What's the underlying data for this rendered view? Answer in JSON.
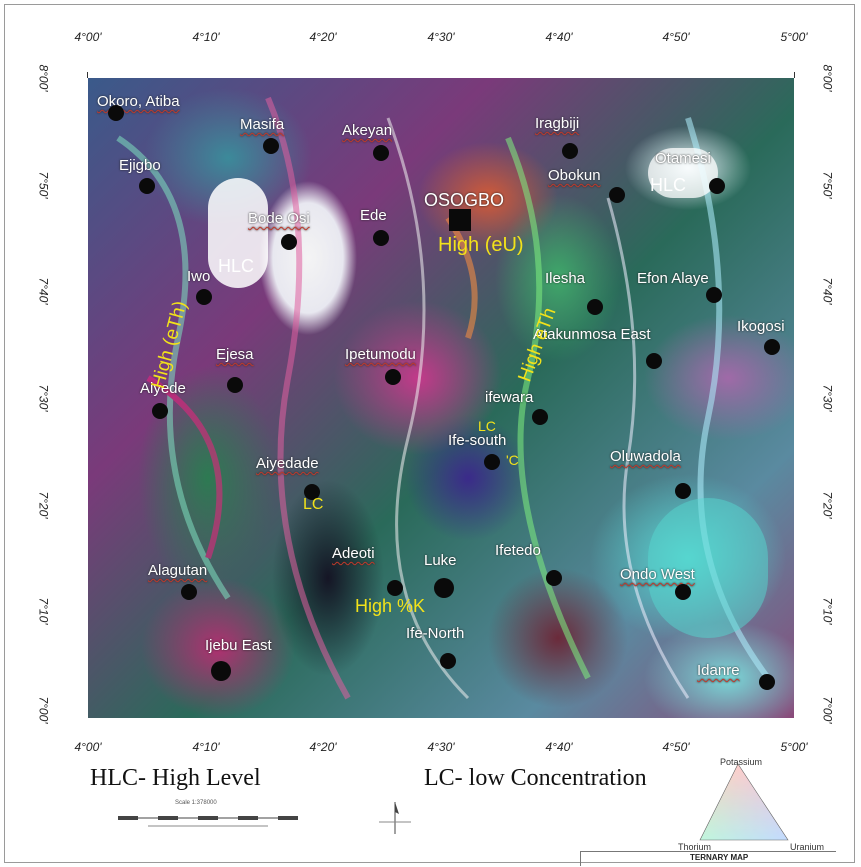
{
  "graticule": {
    "top": [
      "4°00'",
      "4°10'",
      "4°20'",
      "4°30'",
      "4°40'",
      "4°50'",
      "5°00'"
    ],
    "bottom": [
      "4°00'",
      "4°10'",
      "4°20'",
      "4°30'",
      "4°40'",
      "4°50'",
      "5°00'"
    ],
    "left": [
      "8°00'",
      "7°50'",
      "7°40'",
      "7°30'",
      "7°20'",
      "7°10'",
      "7°00'"
    ],
    "right": [
      "8°00'",
      "7°50'",
      "7°40'",
      "7°30'",
      "7°20'",
      "7°10'",
      "7°00'"
    ]
  },
  "towns": [
    {
      "name": "Okoro, Atiba"
    },
    {
      "name": "Masifa"
    },
    {
      "name": "Akeyan"
    },
    {
      "name": "Iragbiji"
    },
    {
      "name": "Ejigbo"
    },
    {
      "name": "Obokun"
    },
    {
      "name": "Otamesi"
    },
    {
      "name": "Bode Osi"
    },
    {
      "name": "Ede"
    },
    {
      "name": "OSOGBO"
    },
    {
      "name": "Iwo"
    },
    {
      "name": "Ilesha"
    },
    {
      "name": "Efon Alaye"
    },
    {
      "name": "Ikogosi"
    },
    {
      "name": "Atakunmosa East"
    },
    {
      "name": "Ejesa"
    },
    {
      "name": "Ipetumodu"
    },
    {
      "name": "Aiyede"
    },
    {
      "name": "ifewara"
    },
    {
      "name": "Ife-south"
    },
    {
      "name": "Aiyedade"
    },
    {
      "name": "Oluwadola"
    },
    {
      "name": "Adeoti"
    },
    {
      "name": "Luke"
    },
    {
      "name": "Ifetedo"
    },
    {
      "name": "Alagutan"
    },
    {
      "name": "Ondo West"
    },
    {
      "name": "Ife-North"
    },
    {
      "name": "Ijebu East"
    },
    {
      "name": "Idanre"
    }
  ],
  "zones": {
    "hlc_west": "HLC",
    "hlc_east": "HLC",
    "high_eu": "High (eU)",
    "high_eth": "High (eTh)",
    "high_th": "High eTh",
    "high_k": "High %K",
    "lc_main": "LC",
    "lc_small1": "LC",
    "lc_small2": "'C"
  },
  "legend": {
    "hlc": "HLC- High Level",
    "lc": "LC- low Concentration"
  },
  "ternary": {
    "title": "TERNARY MAP",
    "top": "Potassium",
    "left": "Thorium",
    "right": "Uranium",
    "colors": {
      "potassium": "#ff2020",
      "thorium": "#20e020",
      "uranium": "#3030ff"
    }
  },
  "scale": {
    "text": "Scale 1:378000"
  },
  "colors": {
    "label_yellow": "#f2e21a",
    "town_white": "#ffffff",
    "squiggle": "#c0392b"
  }
}
